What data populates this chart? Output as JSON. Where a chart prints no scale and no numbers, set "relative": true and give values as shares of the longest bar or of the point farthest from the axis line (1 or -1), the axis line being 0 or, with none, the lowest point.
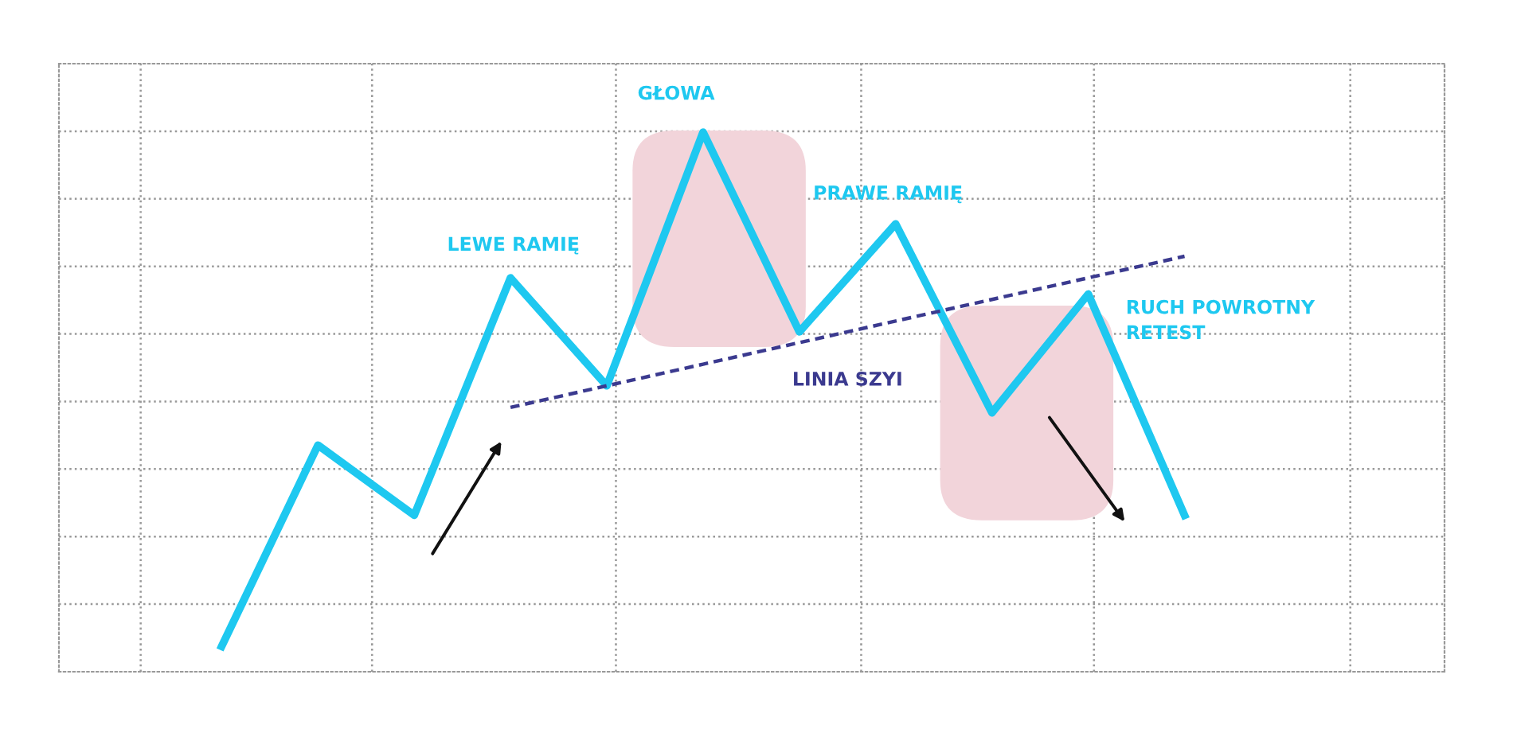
{
  "chart_data": {
    "type": "line",
    "relative": true,
    "legend": false,
    "marker": "none",
    "line_style": "solid",
    "categories": [
      null,
      null,
      null,
      null,
      null,
      null,
      null,
      null,
      null,
      null,
      null
    ],
    "series": [
      {
        "color": "#1ec8f0",
        "values": [
          0.047,
          0.42,
          0.29,
          0.73,
          0.53,
          1,
          0.63,
          0.83,
          0.48,
          0.7,
          0.29
        ]
      },
      {
        "name": "LINIA SZYI",
        "type": "line",
        "line_style": "dashed",
        "color": "#3b3a8f",
        "values": [
          null,
          null,
          null,
          0.49,
          0.53,
          0.57,
          0.61,
          0.65,
          0.69,
          0.73,
          0.77
        ]
      }
    ],
    "annotations": [
      "GŁOWA",
      "LEWE RAMIĘ",
      "PRAWE RAMIĘ",
      "RUCH POWROTNY\nRETEST"
    ]
  }
}
